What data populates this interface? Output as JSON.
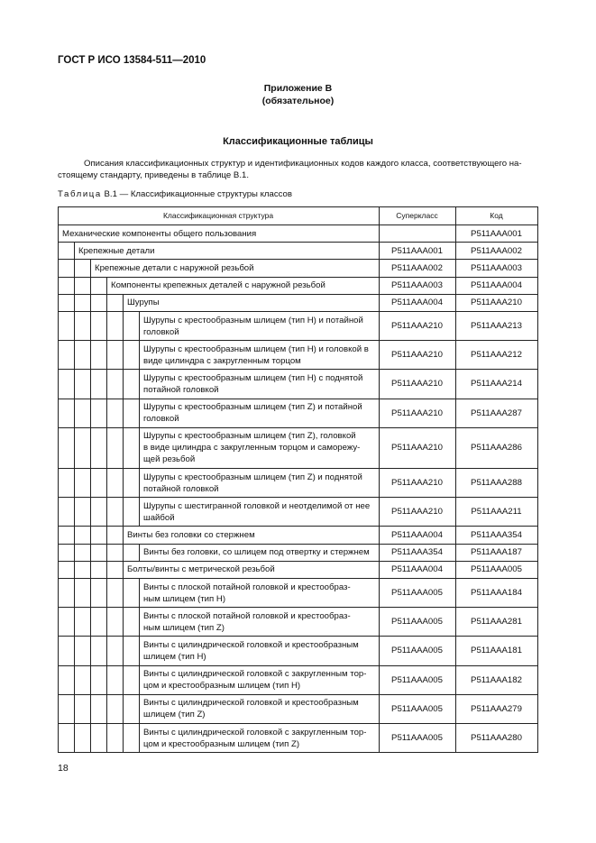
{
  "header": {
    "doc_code": "ГОСТ Р ИСО 13584-511—2010"
  },
  "annex": {
    "title": "Приложение В",
    "status": "(обязательное)"
  },
  "section": {
    "title": "Классификационные таблицы"
  },
  "paragraph": {
    "line1": "Описания классификационных структур и идентификационных кодов каждого класса, соответствующего на-",
    "line2": "стоящему стандарту, приведены в таблице В.1."
  },
  "caption": {
    "label": "Таблица",
    "text": "В.1 — Классификационные структуры классов"
  },
  "table": {
    "headers": {
      "structure": "Классификационная структура",
      "superclass": "Суперкласс",
      "code": "Код"
    },
    "rows": [
      {
        "level": 0,
        "lines": [
          "Механические компоненты общего пользования"
        ],
        "superclass": "",
        "code": "P511AAA001"
      },
      {
        "level": 1,
        "lines": [
          "Крепежные детали"
        ],
        "superclass": "P511AAA001",
        "code": "P511AAA002"
      },
      {
        "level": 2,
        "lines": [
          "Крепежные детали с наружной резьбой"
        ],
        "superclass": "P511AAA002",
        "code": "P511AAA003"
      },
      {
        "level": 3,
        "lines": [
          "Компоненты крепежных деталей с наружной резьбой"
        ],
        "superclass": "P511AAA003",
        "code": "P511AAA004"
      },
      {
        "level": 4,
        "lines": [
          "Шурупы"
        ],
        "superclass": "P511AAA004",
        "code": "P511AAA210"
      },
      {
        "level": 5,
        "lines": [
          "Шурупы с крестообразным шлицем (тип Н) и потайной",
          "головкой"
        ],
        "superclass": "P511AAA210",
        "code": "P511AAA213"
      },
      {
        "level": 5,
        "lines": [
          "Шурупы с крестообразным шлицем (тип Н) и головкой в",
          "виде цилиндра с закругленным торцом"
        ],
        "superclass": "P511AAA210",
        "code": "P511AAA212"
      },
      {
        "level": 5,
        "lines": [
          "Шурупы с крестообразным шлицем (тип Н) с поднятой",
          "потайной головкой"
        ],
        "superclass": "P511AAA210",
        "code": "P511AAA214"
      },
      {
        "level": 5,
        "lines": [
          "Шурупы с крестообразным шлицем (тип Z) и потайной",
          "головкой"
        ],
        "superclass": "P511AAA210",
        "code": "P511AAA287"
      },
      {
        "level": 5,
        "lines": [
          "Шурупы с крестообразным шлицем (тип Z), головкой",
          "в виде цилиндра с закругленным торцом и саморежу-",
          "щей резьбой"
        ],
        "superclass": "P511AAA210",
        "code": "P511AAA286"
      },
      {
        "level": 5,
        "lines": [
          "Шурупы с крестообразным шлицем (тип Z) и поднятой",
          "потайной головкой"
        ],
        "superclass": "P511AAA210",
        "code": "P511AAA288"
      },
      {
        "level": 5,
        "lines": [
          "Шурупы с шестигранной головкой и неотделимой от нее",
          "шайбой"
        ],
        "superclass": "P511AAA210",
        "code": "P511AAA211"
      },
      {
        "level": 4,
        "lines": [
          "Винты без головки со стержнем"
        ],
        "superclass": "P511AAA004",
        "code": "P511AAA354"
      },
      {
        "level": 5,
        "lines": [
          "Винты без головки, со шлицем под отвертку и стержнем"
        ],
        "superclass": "P511AAA354",
        "code": "P511AAA187"
      },
      {
        "level": 4,
        "lines": [
          "Болты/винты с метрической резьбой"
        ],
        "superclass": "P511AAA004",
        "code": "P511AAA005"
      },
      {
        "level": 5,
        "lines": [
          "Винты с плоской потайной головкой и крестообраз-",
          "ным шлицем (тип Н)"
        ],
        "superclass": "P511AAA005",
        "code": "P511AAA184"
      },
      {
        "level": 5,
        "lines": [
          "Винты с плоской потайной головкой и крестообраз-",
          "ным шлицем (тип Z)"
        ],
        "superclass": "P511AAA005",
        "code": "P511AAA281"
      },
      {
        "level": 5,
        "lines": [
          "Винты с цилиндрической головкой и крестообразным",
          "шлицем (тип Н)"
        ],
        "superclass": "P511AAA005",
        "code": "P511AAA181"
      },
      {
        "level": 5,
        "lines": [
          "Винты с цилиндрической головкой с закругленным тор-",
          "цом и крестообразным шлицем (тип Н)"
        ],
        "superclass": "P511AAA005",
        "code": "P511AAA182"
      },
      {
        "level": 5,
        "lines": [
          "Винты с цилиндрической головкой и крестообразным",
          "шлицем (тип Z)"
        ],
        "superclass": "P511AAA005",
        "code": "P511AAA279"
      },
      {
        "level": 5,
        "lines": [
          "Винты с цилиндрической головкой с закругленным тор-",
          "цом и крестообразным шлицем (тип Z)"
        ],
        "superclass": "P511AAA005",
        "code": "P511AAA280"
      }
    ]
  },
  "footer": {
    "page_number": "18"
  }
}
